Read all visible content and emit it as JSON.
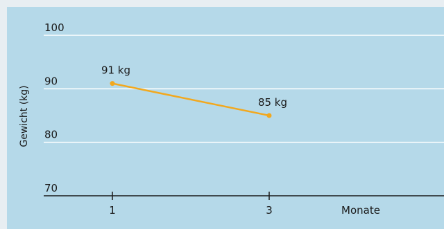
{
  "chart_data": {
    "type": "line",
    "title": "",
    "xlabel": "Monate",
    "ylabel": "Gewicht (kg)",
    "ylim": [
      70,
      100
    ],
    "yticks": [
      "70",
      "80",
      "90",
      "100"
    ],
    "xticks": [
      "1",
      "3"
    ],
    "grid": true,
    "series": [
      {
        "x": [
          1,
          3
        ],
        "values": [
          91,
          85
        ],
        "labels": [
          "91 kg",
          "85 kg"
        ]
      }
    ]
  },
  "colors": {
    "panel": "#b5d9e9",
    "page": "#e8eef2",
    "line": "#f2a81e",
    "grid": "#ffffff",
    "axis": "#1a1a1a"
  }
}
